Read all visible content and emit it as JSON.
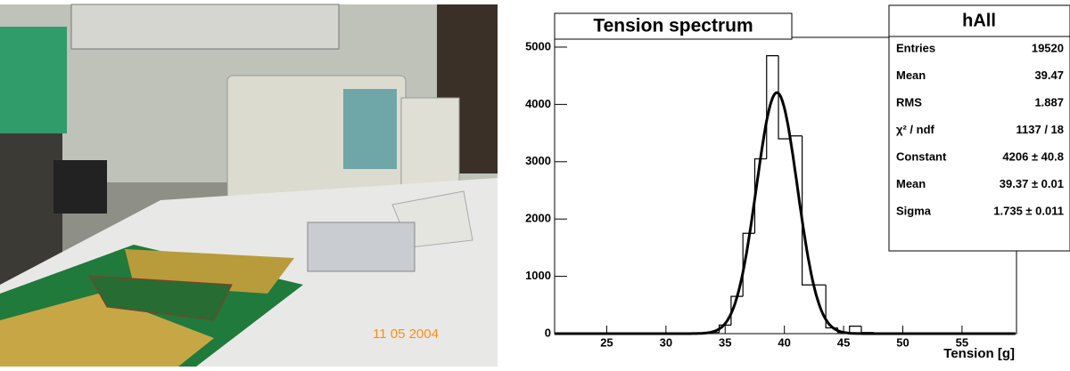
{
  "photo": {
    "date_stamp": "11 05 2004"
  },
  "chart_data": {
    "type": "histogram",
    "title": "Tension spectrum",
    "x_label": "Tension [g]",
    "bins": [
      33.5,
      34.5,
      35.5,
      36.5,
      37.5,
      38.5,
      39.5,
      40.5,
      41.5,
      42.5,
      43.5,
      44.5,
      45.5,
      46.5,
      47.5
    ],
    "values": [
      20,
      150,
      650,
      1750,
      3050,
      4850,
      3400,
      3450,
      850,
      850,
      100,
      20,
      130,
      20
    ],
    "color": "#000000",
    "xlim": [
      20.6,
      59.6
    ],
    "xticks": [
      25,
      30,
      35,
      40,
      45,
      50,
      55
    ],
    "ylim": [
      0,
      5170
    ],
    "yticks": [
      0,
      1000,
      2000,
      3000,
      4000,
      5000
    ],
    "fit": {
      "constant": 4206,
      "mean": 39.37,
      "sigma": 1.735
    },
    "stats": {
      "title": "hAll",
      "rows": [
        {
          "label": "Entries",
          "value": "19520"
        },
        {
          "label": "Mean",
          "value": "39.47"
        },
        {
          "label": "RMS",
          "value": "1.887"
        },
        {
          "label": "χ² / ndf",
          "value": "1137 / 18"
        },
        {
          "label": "Constant",
          "value": "4206 ± 40.8"
        },
        {
          "label": "Mean",
          "value": "39.37 ± 0.01"
        },
        {
          "label": "Sigma",
          "value": "1.735 ± 0.011"
        }
      ]
    }
  }
}
